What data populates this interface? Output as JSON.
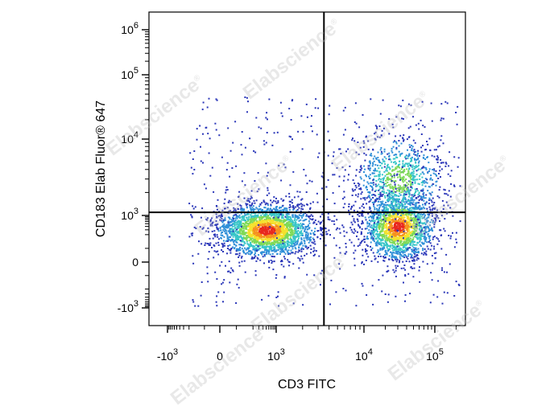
{
  "chart_data": {
    "type": "scatter",
    "subtype": "flow-cytometry-density-dot-plot",
    "xlabel": "CD3 FITC",
    "ylabel": "CD183  Elab Fluor® 647",
    "x_axis": {
      "scale": "biexponential",
      "ticks": [
        {
          "base": "-10",
          "exp": "3"
        },
        {
          "base": "0",
          "exp": ""
        },
        {
          "base": "10",
          "exp": "3"
        },
        {
          "base": "10",
          "exp": "4"
        },
        {
          "base": "10",
          "exp": "5"
        }
      ]
    },
    "y_axis": {
      "scale": "biexponential",
      "ticks": [
        {
          "base": "-10",
          "exp": "3"
        },
        {
          "base": "0",
          "exp": ""
        },
        {
          "base": "10",
          "exp": "3"
        },
        {
          "base": "10",
          "exp": "4"
        },
        {
          "base": "10",
          "exp": "5"
        },
        {
          "base": "10",
          "exp": "6"
        }
      ]
    },
    "quadrant_gate": {
      "x": 3500,
      "y": 1100
    },
    "populations": [
      {
        "center_x": 500,
        "center_y": 300,
        "relative_size": 0.48
      },
      {
        "center_x": 30000,
        "center_y": 400,
        "relative_size": 0.36
      },
      {
        "center_x": 30000,
        "center_y": 3000,
        "relative_size": 0.16
      }
    ],
    "density_colors": [
      "#2a36b8",
      "#2f8fd8",
      "#39c6c8",
      "#7ed957",
      "#f4e12e",
      "#f6921e",
      "#e8281f"
    ],
    "grid": false,
    "legend": "none"
  },
  "watermark": {
    "text": "Elabscience",
    "mark": "®"
  }
}
